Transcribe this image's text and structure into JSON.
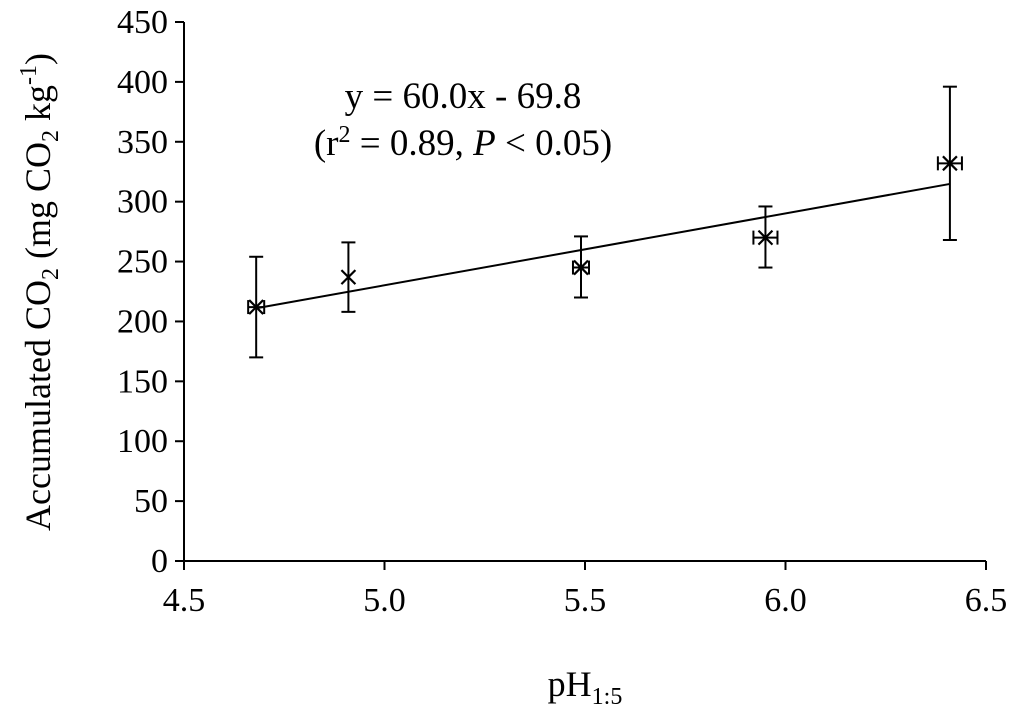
{
  "chart_data": {
    "type": "scatter",
    "xlabel": {
      "base": "pH",
      "sub": "1:5"
    },
    "ylabel": {
      "prefix": "Accumulated CO",
      "sub1": "2",
      "mid": " (mg CO",
      "sub2": "2",
      "mid2": " kg",
      "sup": "-1",
      "suffix": ")"
    },
    "xlim": [
      4.5,
      6.5
    ],
    "ylim": [
      0,
      450
    ],
    "x_ticks": [
      "4.5",
      "5.0",
      "5.5",
      "6.0",
      "6.5"
    ],
    "y_ticks": [
      "0",
      "50",
      "100",
      "150",
      "200",
      "250",
      "300",
      "350",
      "400",
      "450"
    ],
    "series": [
      {
        "name": "Accumulated CO2",
        "points": [
          {
            "x": 4.68,
            "y": 212,
            "y_err_low": 170,
            "y_err_high": 254,
            "x_err": 0.02
          },
          {
            "x": 4.91,
            "y": 237,
            "y_err_low": 208,
            "y_err_high": 266,
            "x_err": 0.0
          },
          {
            "x": 5.49,
            "y": 245,
            "y_err_low": 220,
            "y_err_high": 271,
            "x_err": 0.02
          },
          {
            "x": 5.95,
            "y": 270,
            "y_err_low": 245,
            "y_err_high": 296,
            "x_err": 0.03
          },
          {
            "x": 6.41,
            "y": 332,
            "y_err_low": 268,
            "y_err_high": 396,
            "x_err": 0.03
          }
        ]
      }
    ],
    "trendline": {
      "slope": 60.0,
      "intercept": -69.8,
      "x_range": [
        4.68,
        6.41
      ]
    },
    "annotation": {
      "equation": "y = 60.0x - 69.8",
      "stats_open": "(r",
      "stats_sup": "2",
      "stats_mid": " = 0.89, ",
      "stats_p": "P",
      "stats_tail": " < 0.05)"
    }
  }
}
